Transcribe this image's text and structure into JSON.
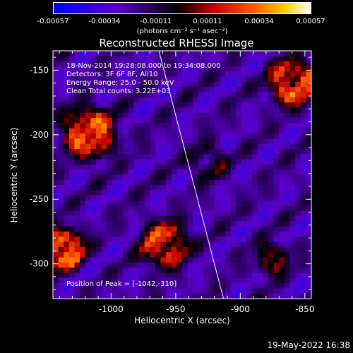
{
  "colorbar": {
    "ticks": [
      "-0.00057",
      "-0.00034",
      "-0.00011",
      "0.00011",
      "0.00034",
      "0.00057"
    ],
    "unit_label": "(photons cm⁻² s⁻¹ asec⁻²)"
  },
  "plot": {
    "title": "Reconstructed RHESSI Image",
    "xlabel": "Heliocentric X (arcsec)",
    "ylabel": "Heliocentric Y (arcsec)",
    "info_lines": [
      "18-Nov-2014 19:28:08.000 to 19:34:08.000",
      "Detectors: 3F 6F 8F, All10",
      "Energy Range: 25.0 - 50.0 keV",
      "Clean     Total counts: 3.22E+03"
    ],
    "peak_text": "Position of Peak = [-1042,-310]"
  },
  "footer": {
    "timestamp": "19-May-2022 16:38"
  },
  "chart_data": {
    "type": "heatmap",
    "title": "Reconstructed RHESSI Image",
    "xlabel": "Heliocentric X (arcsec)",
    "ylabel": "Heliocentric Y (arcsec)",
    "xlim": [
      -1045,
      -845
    ],
    "ylim": [
      -327,
      -135
    ],
    "x_ticks": [
      -1000,
      -950,
      -900,
      -850
    ],
    "x_tick_labels": [
      "-1000",
      "-950",
      "-900",
      "-850"
    ],
    "y_ticks": [
      -150,
      -200,
      -250,
      -300
    ],
    "y_tick_labels": [
      "-150",
      "-200",
      "-250",
      "-300"
    ],
    "colorbar_range": [
      -0.00057,
      0.00057
    ],
    "colormap": "blue-purple-black-red-orange-yellow-white",
    "peak_position": [
      -1042,
      -310
    ],
    "limb_line": [
      [
        -963,
        -135
      ],
      [
        -913,
        -327
      ]
    ]
  }
}
